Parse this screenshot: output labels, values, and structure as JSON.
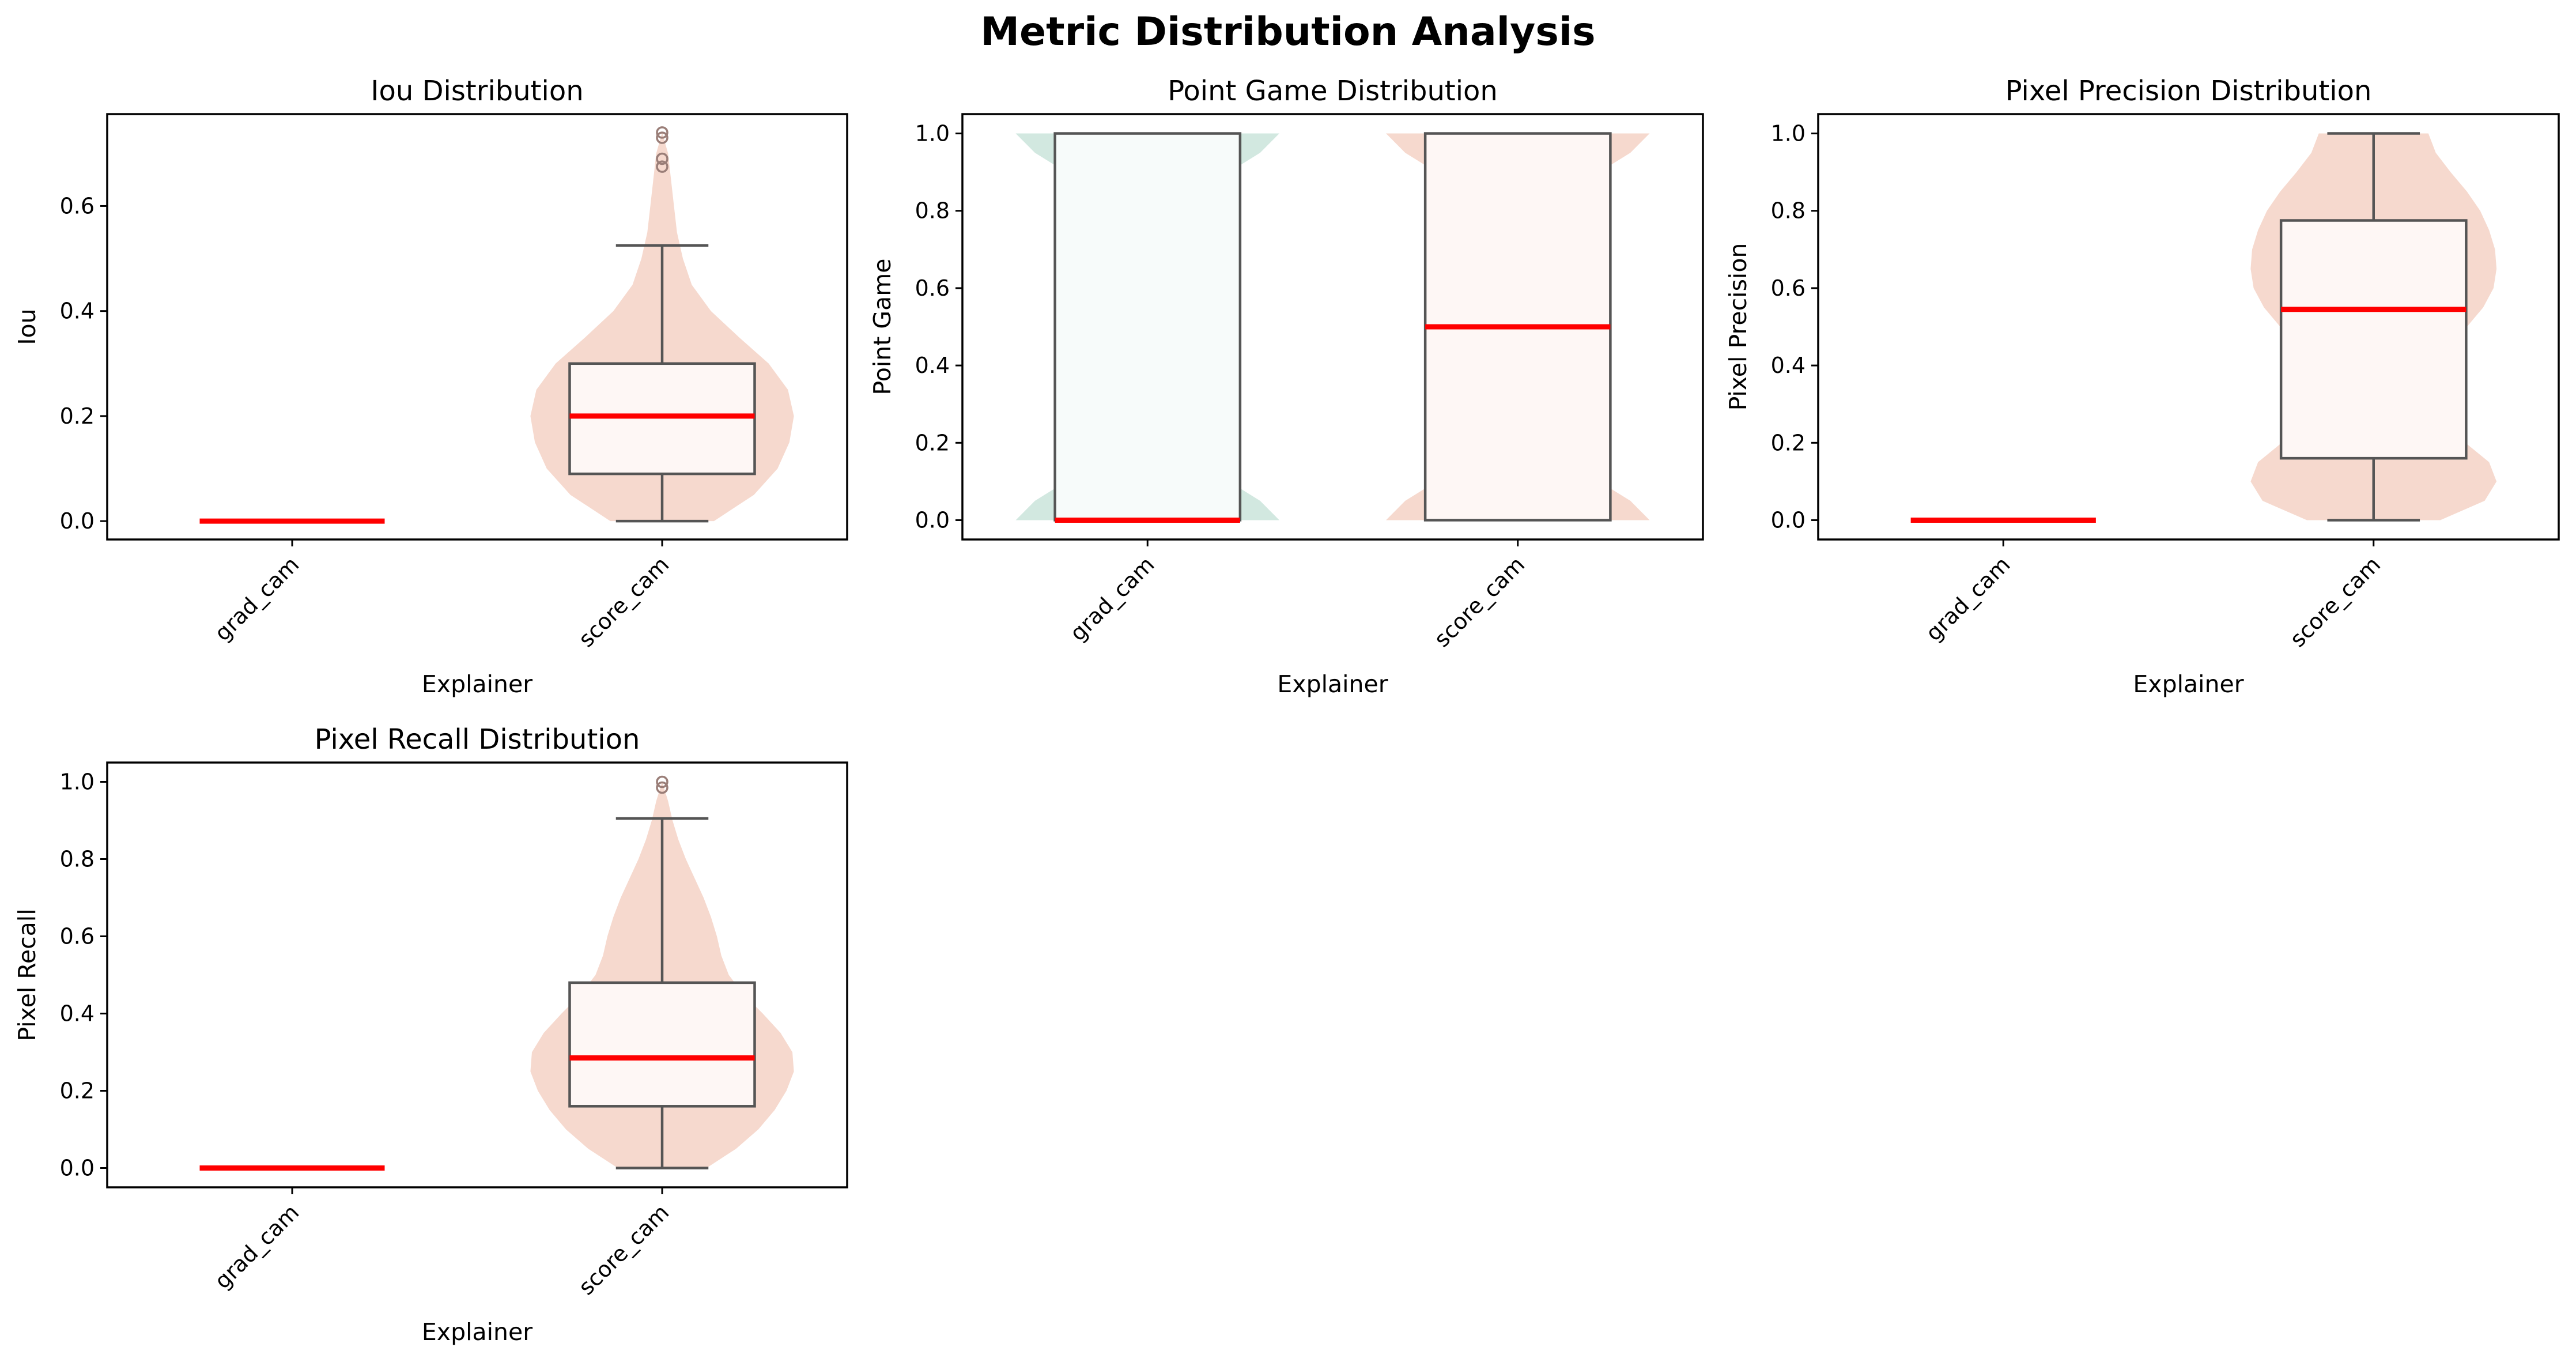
{
  "figure": {
    "title": "Metric Distribution Analysis"
  },
  "colors": {
    "grad_cam_violin": "#d2e8e0",
    "score_cam_violin": "#f6d9ce",
    "grad_cam_box": "#f7fbfa",
    "score_cam_box": "#fef7f5",
    "box_edge": "#555555",
    "median": "#ff0000",
    "outlier": "#9a7e78"
  },
  "chart_data": [
    {
      "type": "violin+box",
      "title": "Iou Distribution",
      "xlabel": "Explainer",
      "ylabel": "Iou",
      "categories": [
        "grad_cam",
        "score_cam"
      ],
      "ylim": [
        -0.035,
        0.775
      ],
      "yticks": [
        0.0,
        0.2,
        0.4,
        0.6
      ],
      "ytick_labels": [
        "0.0",
        "0.2",
        "0.4",
        "0.6"
      ],
      "boxes": [
        {
          "category": "grad_cam",
          "q1": 0.0,
          "median": 0.0,
          "q3": 0.0,
          "whisker_low": 0.0,
          "whisker_high": 0.0,
          "outliers": []
        },
        {
          "category": "score_cam",
          "q1": 0.09,
          "median": 0.2,
          "q3": 0.3,
          "whisker_low": 0.0,
          "whisker_high": 0.525,
          "outliers": [
            0.675,
            0.69,
            0.73,
            0.74
          ]
        }
      ],
      "violins": [
        {
          "category": "grad_cam",
          "profile": []
        },
        {
          "category": "score_cam",
          "profile": [
            [
              0.0,
              0.35
            ],
            [
              0.05,
              0.62
            ],
            [
              0.1,
              0.78
            ],
            [
              0.15,
              0.86
            ],
            [
              0.2,
              0.89
            ],
            [
              0.25,
              0.85
            ],
            [
              0.3,
              0.72
            ],
            [
              0.35,
              0.52
            ],
            [
              0.4,
              0.33
            ],
            [
              0.45,
              0.2
            ],
            [
              0.5,
              0.14
            ],
            [
              0.55,
              0.1
            ],
            [
              0.6,
              0.08
            ],
            [
              0.65,
              0.06
            ],
            [
              0.7,
              0.04
            ],
            [
              0.74,
              0.0
            ]
          ]
        }
      ]
    },
    {
      "type": "violin+box",
      "title": "Point Game Distribution",
      "xlabel": "Explainer",
      "ylabel": "Point Game",
      "categories": [
        "grad_cam",
        "score_cam"
      ],
      "ylim": [
        -0.05,
        1.05
      ],
      "yticks": [
        0.0,
        0.2,
        0.4,
        0.6,
        0.8,
        1.0
      ],
      "ytick_labels": [
        "0.0",
        "0.2",
        "0.4",
        "0.6",
        "0.8",
        "1.0"
      ],
      "boxes": [
        {
          "category": "grad_cam",
          "q1": 0.0,
          "median": 0.0,
          "q3": 1.0,
          "whisker_low": 0.0,
          "whisker_high": 1.0,
          "outliers": []
        },
        {
          "category": "score_cam",
          "q1": 0.0,
          "median": 0.5,
          "q3": 1.0,
          "whisker_low": 0.0,
          "whisker_high": 1.0,
          "outliers": []
        }
      ],
      "violins": [
        {
          "category": "grad_cam",
          "profile": [
            [
              0.0,
              0.89
            ],
            [
              0.05,
              0.76
            ],
            [
              0.1,
              0.55
            ],
            [
              0.15,
              0.35
            ],
            [
              0.2,
              0.2
            ],
            [
              0.3,
              0.08
            ],
            [
              0.4,
              0.04
            ],
            [
              0.5,
              0.03
            ],
            [
              0.6,
              0.04
            ],
            [
              0.7,
              0.08
            ],
            [
              0.8,
              0.2
            ],
            [
              0.85,
              0.35
            ],
            [
              0.9,
              0.55
            ],
            [
              0.95,
              0.76
            ],
            [
              1.0,
              0.89
            ]
          ]
        },
        {
          "category": "score_cam",
          "profile": [
            [
              0.0,
              0.89
            ],
            [
              0.05,
              0.76
            ],
            [
              0.1,
              0.55
            ],
            [
              0.15,
              0.35
            ],
            [
              0.2,
              0.2
            ],
            [
              0.3,
              0.08
            ],
            [
              0.4,
              0.04
            ],
            [
              0.5,
              0.03
            ],
            [
              0.6,
              0.04
            ],
            [
              0.7,
              0.08
            ],
            [
              0.8,
              0.2
            ],
            [
              0.85,
              0.35
            ],
            [
              0.9,
              0.55
            ],
            [
              0.95,
              0.76
            ],
            [
              1.0,
              0.89
            ]
          ]
        }
      ]
    },
    {
      "type": "violin+box",
      "title": "Pixel Precision Distribution",
      "xlabel": "Explainer",
      "ylabel": "Pixel Precision",
      "categories": [
        "grad_cam",
        "score_cam"
      ],
      "ylim": [
        -0.05,
        1.05
      ],
      "yticks": [
        0.0,
        0.2,
        0.4,
        0.6,
        0.8,
        1.0
      ],
      "ytick_labels": [
        "0.0",
        "0.2",
        "0.4",
        "0.6",
        "0.8",
        "1.0"
      ],
      "boxes": [
        {
          "category": "grad_cam",
          "q1": 0.0,
          "median": 0.0,
          "q3": 0.0,
          "whisker_low": 0.0,
          "whisker_high": 0.0,
          "outliers": []
        },
        {
          "category": "score_cam",
          "q1": 0.16,
          "median": 0.545,
          "q3": 0.775,
          "whisker_low": 0.0,
          "whisker_high": 1.0,
          "outliers": []
        }
      ],
      "violins": [
        {
          "category": "grad_cam",
          "profile": []
        },
        {
          "category": "score_cam",
          "profile": [
            [
              0.0,
              0.45
            ],
            [
              0.05,
              0.75
            ],
            [
              0.1,
              0.83
            ],
            [
              0.15,
              0.78
            ],
            [
              0.2,
              0.62
            ],
            [
              0.25,
              0.45
            ],
            [
              0.3,
              0.36
            ],
            [
              0.35,
              0.35
            ],
            [
              0.4,
              0.4
            ],
            [
              0.45,
              0.5
            ],
            [
              0.5,
              0.63
            ],
            [
              0.55,
              0.74
            ],
            [
              0.6,
              0.81
            ],
            [
              0.65,
              0.83
            ],
            [
              0.7,
              0.82
            ],
            [
              0.75,
              0.78
            ],
            [
              0.8,
              0.72
            ],
            [
              0.85,
              0.63
            ],
            [
              0.9,
              0.52
            ],
            [
              0.95,
              0.42
            ],
            [
              1.0,
              0.37
            ]
          ]
        }
      ]
    },
    {
      "type": "violin+box",
      "title": "Pixel Recall Distribution",
      "xlabel": "Explainer",
      "ylabel": "Pixel Recall",
      "categories": [
        "grad_cam",
        "score_cam"
      ],
      "ylim": [
        -0.05,
        1.05
      ],
      "yticks": [
        0.0,
        0.2,
        0.4,
        0.6,
        0.8,
        1.0
      ],
      "ytick_labels": [
        "0.0",
        "0.2",
        "0.4",
        "0.6",
        "0.8",
        "1.0"
      ],
      "boxes": [
        {
          "category": "grad_cam",
          "q1": 0.0,
          "median": 0.0,
          "q3": 0.0,
          "whisker_low": 0.0,
          "whisker_high": 0.0,
          "outliers": []
        },
        {
          "category": "score_cam",
          "q1": 0.16,
          "median": 0.285,
          "q3": 0.48,
          "whisker_low": 0.0,
          "whisker_high": 0.905,
          "outliers": [
            0.985,
            1.0
          ]
        }
      ],
      "violins": [
        {
          "category": "grad_cam",
          "profile": []
        },
        {
          "category": "score_cam",
          "profile": [
            [
              0.0,
              0.3
            ],
            [
              0.05,
              0.5
            ],
            [
              0.1,
              0.65
            ],
            [
              0.15,
              0.76
            ],
            [
              0.2,
              0.84
            ],
            [
              0.25,
              0.89
            ],
            [
              0.3,
              0.88
            ],
            [
              0.35,
              0.8
            ],
            [
              0.4,
              0.68
            ],
            [
              0.45,
              0.55
            ],
            [
              0.5,
              0.45
            ],
            [
              0.55,
              0.4
            ],
            [
              0.6,
              0.37
            ],
            [
              0.65,
              0.33
            ],
            [
              0.7,
              0.28
            ],
            [
              0.75,
              0.22
            ],
            [
              0.8,
              0.16
            ],
            [
              0.85,
              0.11
            ],
            [
              0.9,
              0.07
            ],
            [
              0.95,
              0.04
            ],
            [
              1.0,
              0.0
            ]
          ]
        }
      ]
    }
  ]
}
